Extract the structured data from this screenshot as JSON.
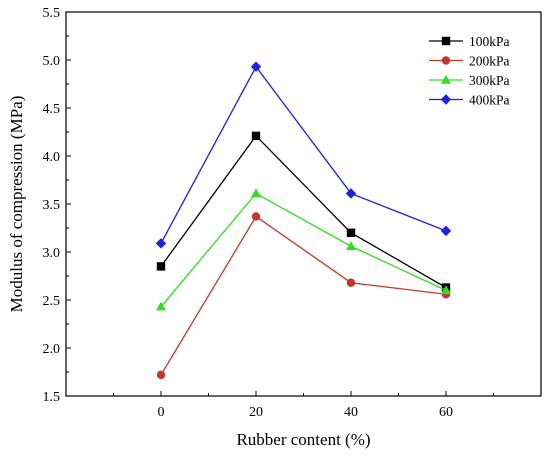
{
  "chart_data": {
    "type": "line",
    "title": "",
    "xlabel": "Rubber content (%)",
    "ylabel": "Modulus of compression (MPa)",
    "x": [
      0,
      20,
      40,
      60
    ],
    "x_tick_labels": [
      "0",
      "20",
      "40",
      "60"
    ],
    "xlim": [
      -20,
      80
    ],
    "ylim": [
      1.5,
      5.5
    ],
    "y_tick_labels": [
      "1.5",
      "2.0",
      "2.5",
      "3.0",
      "3.5",
      "4.0",
      "4.5",
      "5.0",
      "5.5"
    ],
    "grid": false,
    "legend_position": "top-right",
    "series": [
      {
        "name": "100kPa",
        "color": "#000000",
        "marker": "square",
        "values": [
          2.85,
          4.21,
          3.2,
          2.63
        ]
      },
      {
        "name": "200kPa",
        "color": "#c0392b",
        "marker": "circle",
        "values": [
          1.72,
          3.37,
          2.68,
          2.56
        ]
      },
      {
        "name": "300kPa",
        "color": "#33dd22",
        "marker": "triangle",
        "values": [
          2.43,
          3.61,
          3.06,
          2.6
        ]
      },
      {
        "name": "400kPa",
        "color": "#1f1fe0",
        "marker": "diamond",
        "values": [
          3.09,
          4.93,
          3.61,
          3.22
        ]
      }
    ]
  }
}
